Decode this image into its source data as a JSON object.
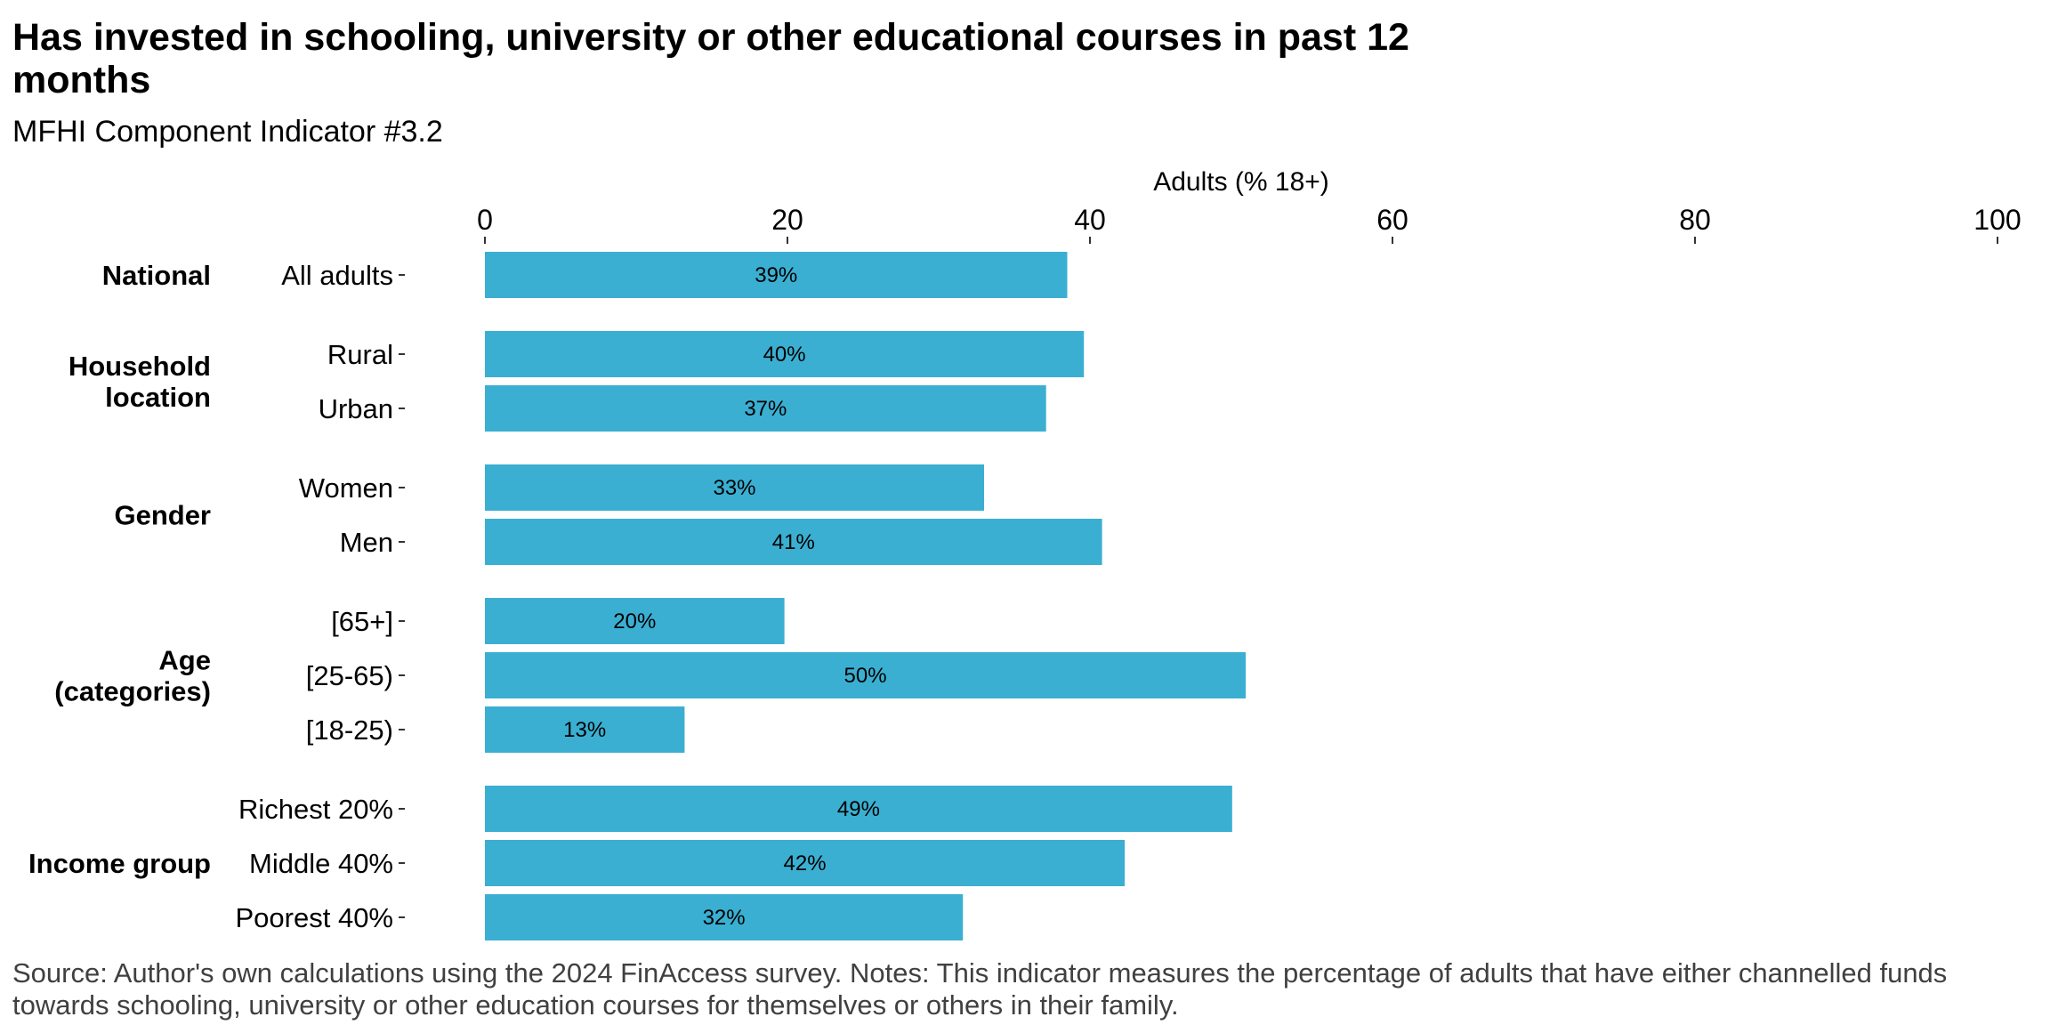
{
  "title": "Has invested in schooling, university or other educational courses in past 12 months",
  "subtitle": "MFHI Component Indicator #3.2",
  "caption": "Source: Author's own calculations using the 2024 FinAccess survey. Notes: This indicator measures the percentage of adults that have either channelled funds towards schooling, university or other education courses for themselves or others in their family.",
  "colors": {
    "bar": "#3AAFD2",
    "text": "#000000",
    "caption": "#404040"
  },
  "chart_data": {
    "type": "bar",
    "orientation": "horizontal",
    "xlabel": "Adults (% 18+)",
    "xlim": [
      0,
      100
    ],
    "xticks": [
      0,
      20,
      40,
      60,
      80,
      100
    ],
    "x_axis_position": "top",
    "grid": false,
    "legend": "none",
    "groups": [
      {
        "label": "National",
        "categories": [
          "All adults"
        ],
        "values": [
          38.5
        ],
        "value_labels": [
          "39%"
        ]
      },
      {
        "label": "Household\nlocation",
        "categories": [
          "Rural",
          "Urban"
        ],
        "values": [
          39.6,
          37.1
        ],
        "value_labels": [
          "40%",
          "37%"
        ]
      },
      {
        "label": "Gender",
        "categories": [
          "Women",
          "Men"
        ],
        "values": [
          33.0,
          40.8
        ],
        "value_labels": [
          "33%",
          "41%"
        ]
      },
      {
        "label": "Age\n(categories)",
        "categories": [
          "[65+]",
          "[25-65)",
          "[18-25)"
        ],
        "values": [
          19.8,
          50.3,
          13.2
        ],
        "value_labels": [
          "20%",
          "50%",
          "13%"
        ]
      },
      {
        "label": "Income group",
        "categories": [
          "Richest 20%",
          "Middle 40%",
          "Poorest 40%"
        ],
        "values": [
          49.4,
          42.3,
          31.6
        ],
        "value_labels": [
          "49%",
          "42%",
          "32%"
        ]
      }
    ]
  }
}
